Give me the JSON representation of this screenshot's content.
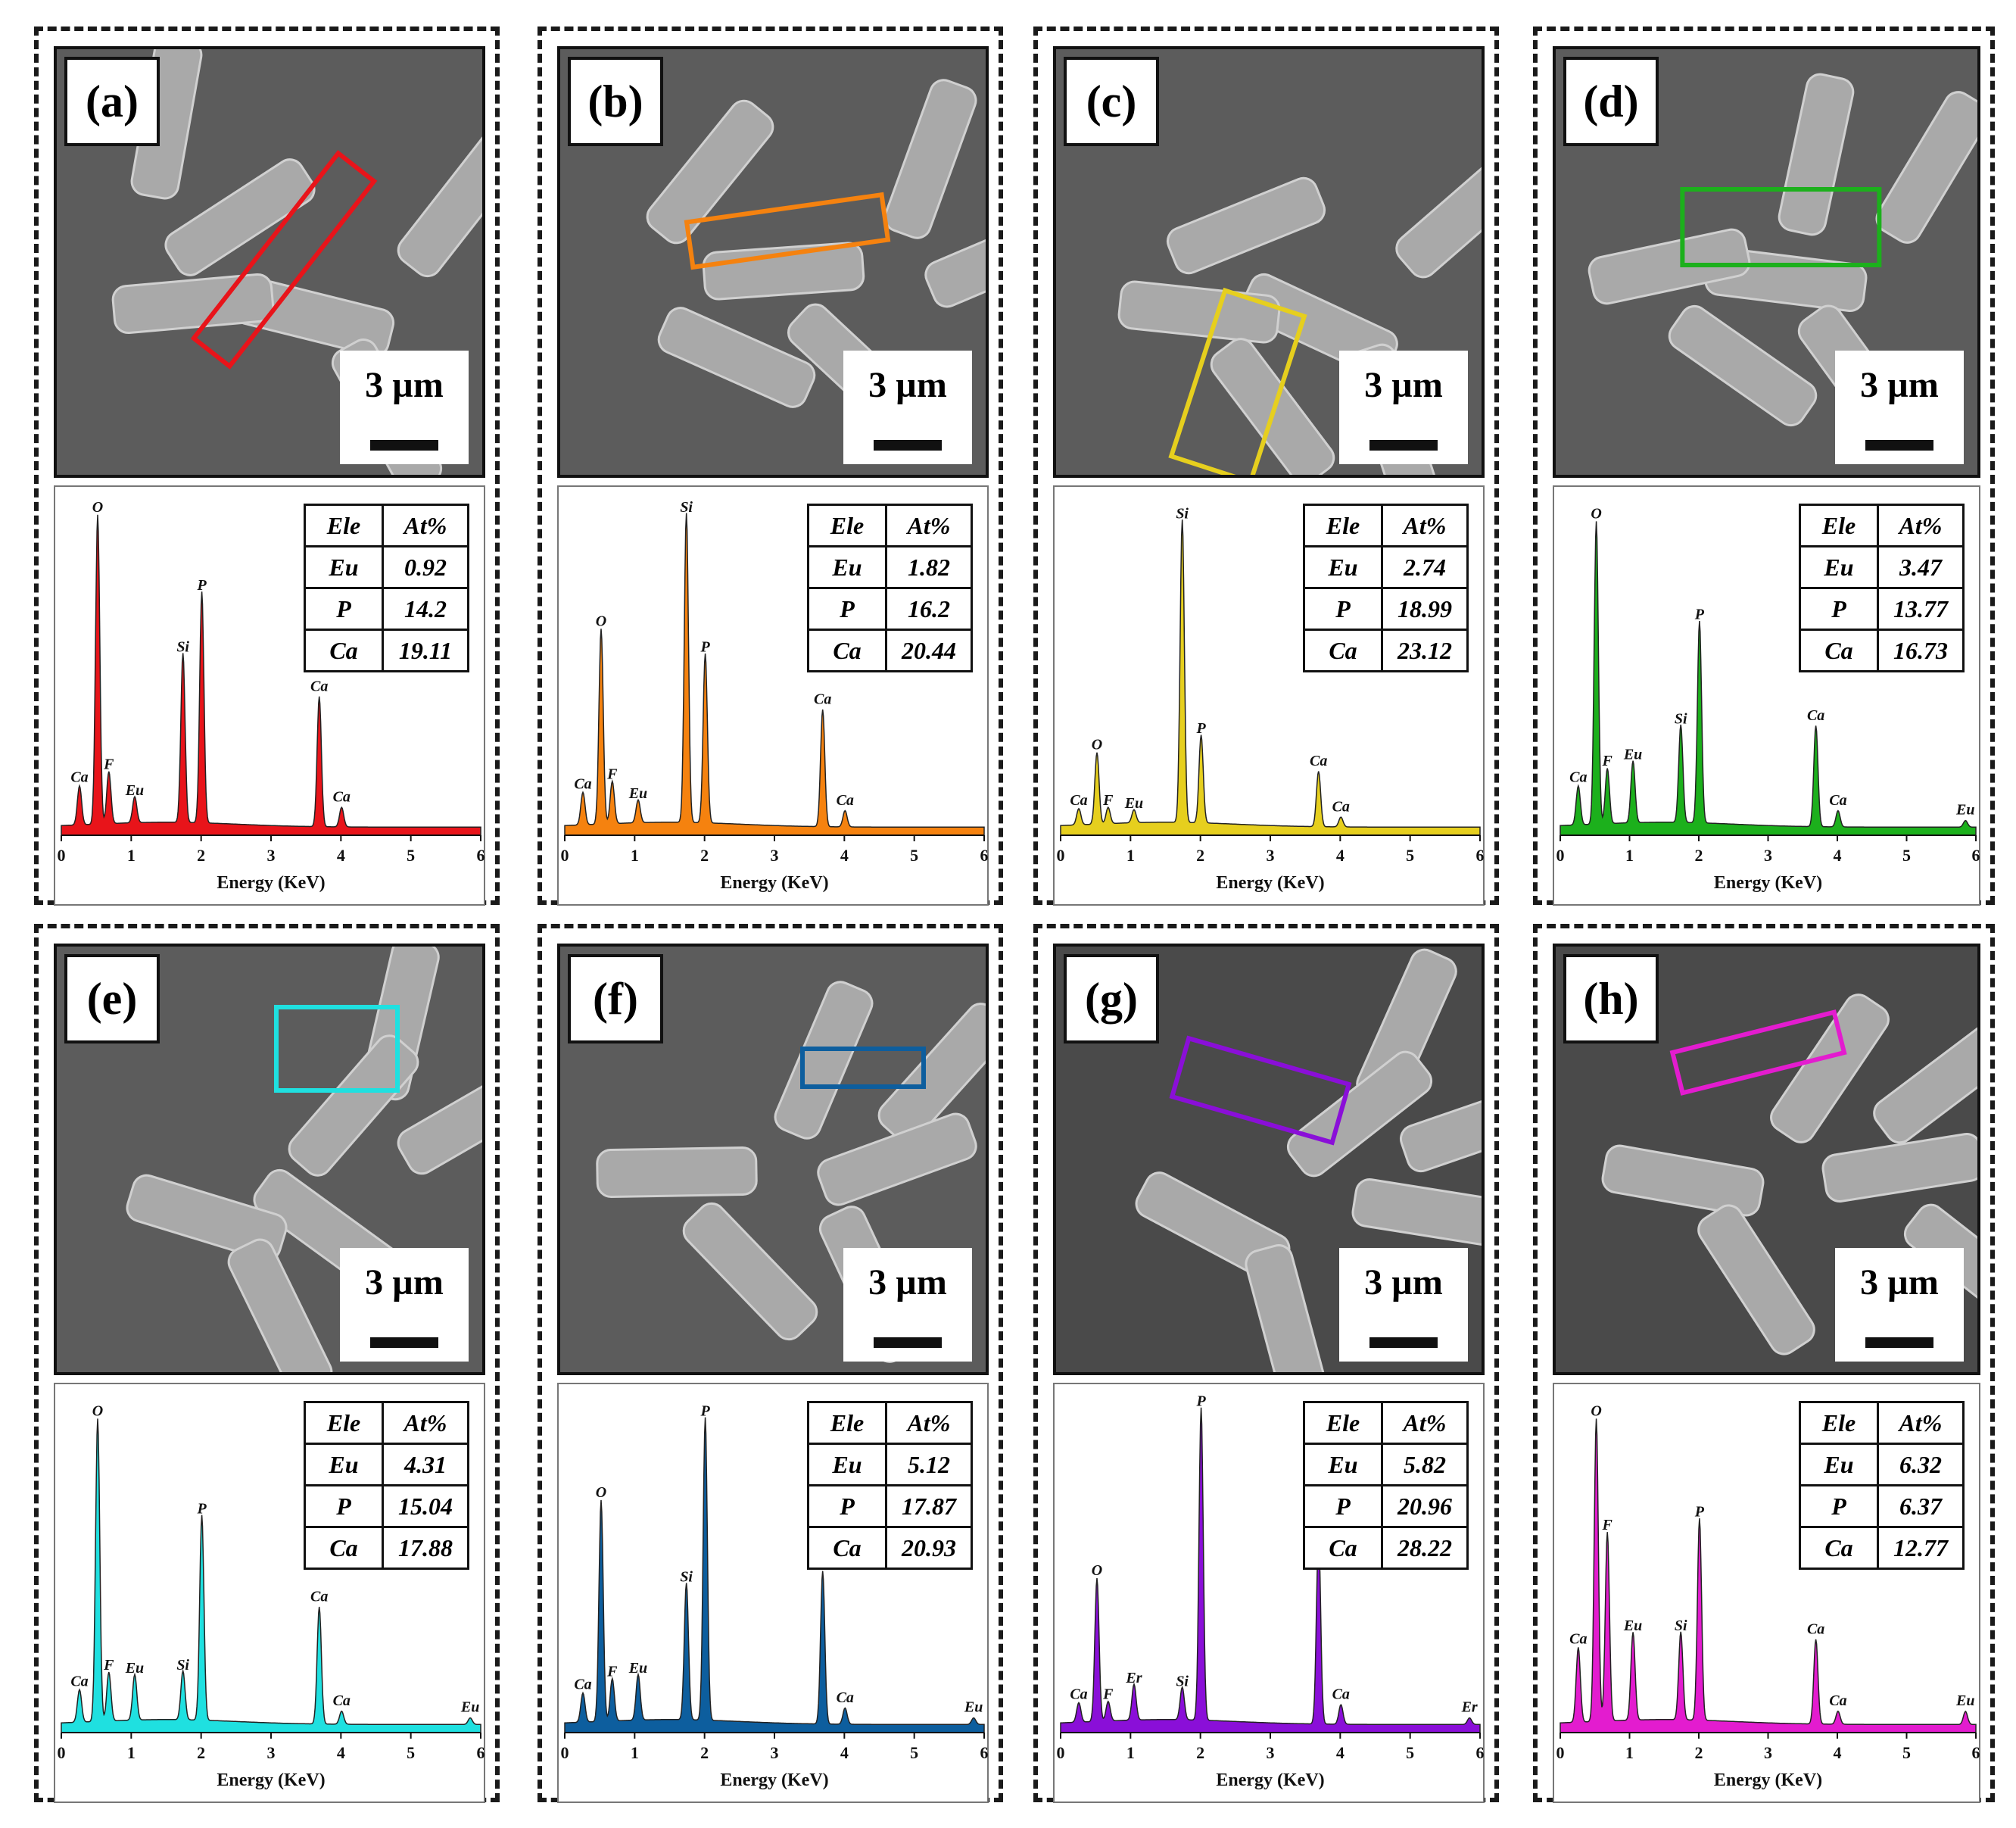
{
  "scale_label": "3 µm",
  "table_header": [
    "Ele",
    "At%"
  ],
  "x_label": "Energy (KeV)",
  "x_ticks": [
    "0",
    "1",
    "2",
    "3",
    "4",
    "5",
    "6"
  ],
  "chart_data": [
    {
      "type": "area",
      "panel": "(a)",
      "color": "#e8141a",
      "xlabel": "Energy (KeV)",
      "xlim": [
        0,
        6
      ],
      "table": [
        [
          "Eu",
          "0.92"
        ],
        [
          "P",
          "14.2"
        ],
        [
          "Ca",
          "19.11"
        ]
      ],
      "peaks": [
        {
          "label": "Ca",
          "x": 0.26,
          "h": 0.12
        },
        {
          "label": "O",
          "x": 0.52,
          "h": 0.95
        },
        {
          "label": "F",
          "x": 0.68,
          "h": 0.16
        },
        {
          "label": "Eu",
          "x": 1.05,
          "h": 0.08
        },
        {
          "label": "Si",
          "x": 1.74,
          "h": 0.52
        },
        {
          "label": "P",
          "x": 2.01,
          "h": 0.71
        },
        {
          "label": "Ca",
          "x": 3.69,
          "h": 0.4
        },
        {
          "label": "Ca",
          "x": 4.01,
          "h": 0.06
        }
      ]
    },
    {
      "type": "area",
      "panel": "(b)",
      "color": "#f5820f",
      "xlabel": "Energy (KeV)",
      "xlim": [
        0,
        6
      ],
      "table": [
        [
          "Eu",
          "1.82"
        ],
        [
          "P",
          "16.2"
        ],
        [
          "Ca",
          "20.44"
        ]
      ],
      "peaks": [
        {
          "label": "Ca",
          "x": 0.26,
          "h": 0.1
        },
        {
          "label": "O",
          "x": 0.52,
          "h": 0.6
        },
        {
          "label": "F",
          "x": 0.68,
          "h": 0.13
        },
        {
          "label": "Eu",
          "x": 1.05,
          "h": 0.07
        },
        {
          "label": "Si",
          "x": 1.74,
          "h": 0.95
        },
        {
          "label": "P",
          "x": 2.01,
          "h": 0.52
        },
        {
          "label": "Ca",
          "x": 3.69,
          "h": 0.36
        },
        {
          "label": "Ca",
          "x": 4.01,
          "h": 0.05
        }
      ]
    },
    {
      "type": "area",
      "panel": "(c)",
      "color": "#e6cf1e",
      "xlabel": "Energy (KeV)",
      "xlim": [
        0,
        6
      ],
      "table": [
        [
          "Eu",
          "2.74"
        ],
        [
          "P",
          "18.99"
        ],
        [
          "Ca",
          "23.12"
        ]
      ],
      "peaks": [
        {
          "label": "Ca",
          "x": 0.26,
          "h": 0.05
        },
        {
          "label": "O",
          "x": 0.52,
          "h": 0.22
        },
        {
          "label": "F",
          "x": 0.68,
          "h": 0.05
        },
        {
          "label": "Eu",
          "x": 1.05,
          "h": 0.04
        },
        {
          "label": "Si",
          "x": 1.74,
          "h": 0.93
        },
        {
          "label": "P",
          "x": 2.01,
          "h": 0.27
        },
        {
          "label": "Ca",
          "x": 3.69,
          "h": 0.17
        },
        {
          "label": "Ca",
          "x": 4.01,
          "h": 0.03
        }
      ]
    },
    {
      "type": "area",
      "panel": "(d)",
      "color": "#1cb01c",
      "xlabel": "Energy (KeV)",
      "xlim": [
        0,
        6
      ],
      "table": [
        [
          "Eu",
          "3.47"
        ],
        [
          "P",
          "13.77"
        ],
        [
          "Ca",
          "16.73"
        ]
      ],
      "peaks": [
        {
          "label": "Ca",
          "x": 0.26,
          "h": 0.12
        },
        {
          "label": "O",
          "x": 0.52,
          "h": 0.93
        },
        {
          "label": "F",
          "x": 0.68,
          "h": 0.17
        },
        {
          "label": "Eu",
          "x": 1.05,
          "h": 0.19
        },
        {
          "label": "Si",
          "x": 1.74,
          "h": 0.3
        },
        {
          "label": "P",
          "x": 2.01,
          "h": 0.62
        },
        {
          "label": "Ca",
          "x": 3.69,
          "h": 0.31
        },
        {
          "label": "Ca",
          "x": 4.01,
          "h": 0.05
        },
        {
          "label": "Eu",
          "x": 5.85,
          "h": 0.02
        }
      ]
    },
    {
      "type": "area",
      "panel": "(e)",
      "color": "#1fe0e0",
      "xlabel": "Energy (KeV)",
      "xlim": [
        0,
        6
      ],
      "table": [
        [
          "Eu",
          "4.31"
        ],
        [
          "P",
          "15.04"
        ],
        [
          "Ca",
          "17.88"
        ]
      ],
      "peaks": [
        {
          "label": "Ca",
          "x": 0.26,
          "h": 0.1
        },
        {
          "label": "O",
          "x": 0.52,
          "h": 0.93
        },
        {
          "label": "F",
          "x": 0.68,
          "h": 0.15
        },
        {
          "label": "Eu",
          "x": 1.05,
          "h": 0.14
        },
        {
          "label": "Si",
          "x": 1.74,
          "h": 0.15
        },
        {
          "label": "P",
          "x": 2.01,
          "h": 0.63
        },
        {
          "label": "Ca",
          "x": 3.69,
          "h": 0.36
        },
        {
          "label": "Ca",
          "x": 4.01,
          "h": 0.04
        },
        {
          "label": "Eu",
          "x": 5.85,
          "h": 0.02
        }
      ]
    },
    {
      "type": "area",
      "panel": "(f)",
      "color": "#0d5e9e",
      "xlabel": "Energy (KeV)",
      "xlim": [
        0,
        6
      ],
      "table": [
        [
          "Eu",
          "5.12"
        ],
        [
          "P",
          "17.87"
        ],
        [
          "Ca",
          "20.93"
        ]
      ],
      "peaks": [
        {
          "label": "Ca",
          "x": 0.26,
          "h": 0.09
        },
        {
          "label": "O",
          "x": 0.52,
          "h": 0.68
        },
        {
          "label": "F",
          "x": 0.68,
          "h": 0.13
        },
        {
          "label": "Eu",
          "x": 1.05,
          "h": 0.14
        },
        {
          "label": "Si",
          "x": 1.74,
          "h": 0.42
        },
        {
          "label": "P",
          "x": 2.01,
          "h": 0.93
        },
        {
          "label": "Ca",
          "x": 3.69,
          "h": 0.47
        },
        {
          "label": "Ca",
          "x": 4.01,
          "h": 0.05
        },
        {
          "label": "Eu",
          "x": 5.85,
          "h": 0.02
        }
      ]
    },
    {
      "type": "area",
      "panel": "(g)",
      "color": "#8a0fd8",
      "xlabel": "Energy (KeV)",
      "xlim": [
        0,
        6
      ],
      "table": [
        [
          "Eu",
          "5.82"
        ],
        [
          "P",
          "20.96"
        ],
        [
          "Ca",
          "28.22"
        ]
      ],
      "peaks": [
        {
          "label": "Ca",
          "x": 0.26,
          "h": 0.06
        },
        {
          "label": "O",
          "x": 0.52,
          "h": 0.44
        },
        {
          "label": "F",
          "x": 0.68,
          "h": 0.06
        },
        {
          "label": "Er",
          "x": 1.05,
          "h": 0.11
        },
        {
          "label": "Si",
          "x": 1.74,
          "h": 0.1
        },
        {
          "label": "P",
          "x": 2.01,
          "h": 0.96
        },
        {
          "label": "Ca",
          "x": 3.69,
          "h": 0.58
        },
        {
          "label": "Ca",
          "x": 4.01,
          "h": 0.06
        },
        {
          "label": "Er",
          "x": 5.85,
          "h": 0.02
        }
      ]
    },
    {
      "type": "area",
      "panel": "(h)",
      "color": "#e31ccf",
      "xlabel": "Energy (KeV)",
      "xlim": [
        0,
        6
      ],
      "table": [
        [
          "Eu",
          "6.32"
        ],
        [
          "P",
          "6.37"
        ],
        [
          "Ca",
          "12.77"
        ]
      ],
      "peaks": [
        {
          "label": "Ca",
          "x": 0.26,
          "h": 0.23
        },
        {
          "label": "O",
          "x": 0.52,
          "h": 0.93
        },
        {
          "label": "F",
          "x": 0.68,
          "h": 0.58
        },
        {
          "label": "Eu",
          "x": 1.05,
          "h": 0.27
        },
        {
          "label": "Si",
          "x": 1.74,
          "h": 0.27
        },
        {
          "label": "P",
          "x": 2.01,
          "h": 0.62
        },
        {
          "label": "Ca",
          "x": 3.69,
          "h": 0.26
        },
        {
          "label": "Ca",
          "x": 4.01,
          "h": 0.04
        },
        {
          "label": "Eu",
          "x": 5.85,
          "h": 0.04
        }
      ]
    }
  ]
}
